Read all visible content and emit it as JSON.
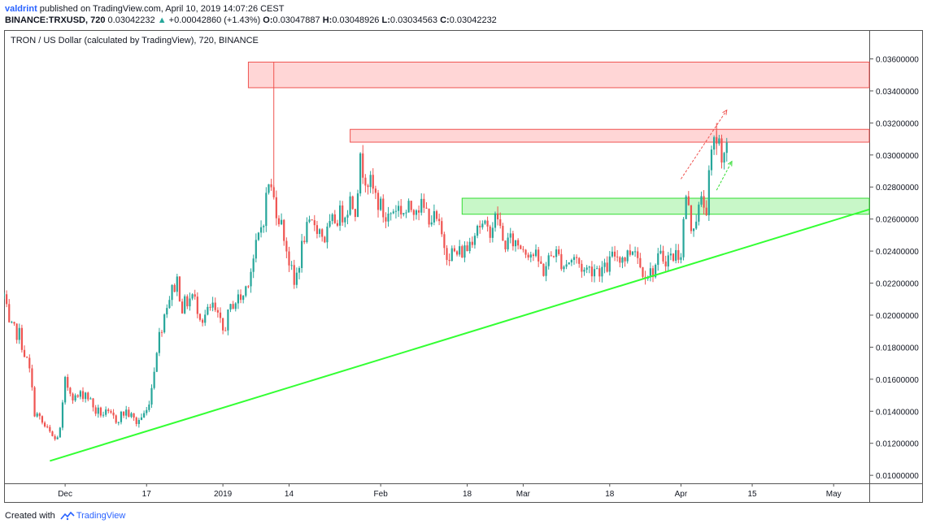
{
  "header": {
    "author": "valdrint",
    "published_text": "published on TradingView.com, April 10, 2019 14:07:26 CEST",
    "symbol": "BINANCE:TRXUSD, 720",
    "last": "0.03042232",
    "change_arrow": "▲",
    "change": "+0.00042860 (+1.43%)",
    "o_label": "O:",
    "o_value": "0.03047887",
    "h_label": "H:",
    "h_value": "0.03048926",
    "l_label": "L:",
    "l_value": "0.03034563",
    "c_label": "C:",
    "c_value": "0.03042232"
  },
  "footer": {
    "created_with": "Created with",
    "brand": "TradingView"
  },
  "colors": {
    "up": "#26a69a",
    "down": "#ef5350",
    "trendline": "#33ff33",
    "resistance_fill": "#ffd6d6",
    "resistance_stroke": "#ef5350",
    "support_fill": "#c8f7c8",
    "support_stroke": "#33dd33",
    "axis_text": "#131722",
    "border": "#555555"
  },
  "chart_data": {
    "type": "candlestick",
    "title": "TRON / US Dollar (calculated by TradingView), 720, BINANCE",
    "ylim": [
      0.0095,
      0.0378
    ],
    "y_ticks": [
      0.036,
      0.034,
      0.032,
      0.03,
      0.028,
      0.026,
      0.024,
      0.022,
      0.02,
      0.018,
      0.016,
      0.014,
      0.012,
      0.01
    ],
    "y_tick_labels": [
      "0.03600000",
      "0.03400000",
      "0.03200000",
      "0.03000000",
      "0.02800000",
      "0.02600000",
      "0.02400000",
      "0.02200000",
      "0.02000000",
      "0.01800000",
      "0.01600000",
      "0.01400000",
      "0.01200000",
      "0.01000000"
    ],
    "xlim": [
      "2018-11-19",
      "2019-05-08"
    ],
    "x_ticks": [
      {
        "date": "2018-12-01",
        "label": "Dec"
      },
      {
        "date": "2018-12-17",
        "label": "17"
      },
      {
        "date": "2019-01-01",
        "label": "2019"
      },
      {
        "date": "2019-01-14",
        "label": "14"
      },
      {
        "date": "2019-02-01",
        "label": "Feb"
      },
      {
        "date": "2019-02-18",
        "label": "18"
      },
      {
        "date": "2019-03-01",
        "label": "Mar"
      },
      {
        "date": "2019-03-18",
        "label": "18"
      },
      {
        "date": "2019-04-01",
        "label": "Apr"
      },
      {
        "date": "2019-04-15",
        "label": "15"
      },
      {
        "date": "2019-05-01",
        "label": "May"
      }
    ],
    "price_path": [
      [
        "2018-11-19",
        0.0212
      ],
      [
        "2018-11-20",
        0.0192
      ],
      [
        "2018-11-22",
        0.0188
      ],
      [
        "2018-11-24",
        0.0165
      ],
      [
        "2018-11-25",
        0.014
      ],
      [
        "2018-11-27",
        0.013
      ],
      [
        "2018-11-29",
        0.0122
      ],
      [
        "2018-11-30",
        0.0128
      ],
      [
        "2018-12-01",
        0.0158
      ],
      [
        "2018-12-03",
        0.0148
      ],
      [
        "2018-12-05",
        0.0152
      ],
      [
        "2018-12-07",
        0.014
      ],
      [
        "2018-12-09",
        0.0138
      ],
      [
        "2018-12-11",
        0.0135
      ],
      [
        "2018-12-13",
        0.014
      ],
      [
        "2018-12-15",
        0.0133
      ],
      [
        "2018-12-17",
        0.014
      ],
      [
        "2018-12-18",
        0.0155
      ],
      [
        "2018-12-19",
        0.018
      ],
      [
        "2018-12-21",
        0.0208
      ],
      [
        "2018-12-23",
        0.0222
      ],
      [
        "2018-12-24",
        0.0205
      ],
      [
        "2018-12-26",
        0.0212
      ],
      [
        "2018-12-28",
        0.0198
      ],
      [
        "2018-12-30",
        0.0205
      ],
      [
        "2019-01-01",
        0.019
      ],
      [
        "2019-01-03",
        0.0208
      ],
      [
        "2019-01-05",
        0.0212
      ],
      [
        "2019-01-07",
        0.0235
      ],
      [
        "2019-01-09",
        0.0262
      ],
      [
        "2019-01-10",
        0.0283
      ],
      [
        "2019-01-11",
        0.0272
      ],
      [
        "2019-01-12",
        0.0262
      ],
      [
        "2019-01-13",
        0.025
      ],
      [
        "2019-01-15",
        0.0218
      ],
      [
        "2019-01-17",
        0.025
      ],
      [
        "2019-01-19",
        0.0258
      ],
      [
        "2019-01-21",
        0.0248
      ],
      [
        "2019-01-23",
        0.026
      ],
      [
        "2019-01-25",
        0.0265
      ],
      [
        "2019-01-26",
        0.0272
      ],
      [
        "2019-01-27",
        0.0268
      ],
      [
        "2019-01-28",
        0.0295
      ],
      [
        "2019-01-29",
        0.0288
      ],
      [
        "2019-01-31",
        0.0274
      ],
      [
        "2019-02-02",
        0.026
      ],
      [
        "2019-02-04",
        0.0268
      ],
      [
        "2019-02-06",
        0.0264
      ],
      [
        "2019-02-08",
        0.027
      ],
      [
        "2019-02-10",
        0.0264
      ],
      [
        "2019-02-12",
        0.0258
      ],
      [
        "2019-02-14",
        0.024
      ],
      [
        "2019-02-16",
        0.0238
      ],
      [
        "2019-02-18",
        0.0242
      ],
      [
        "2019-02-20",
        0.0258
      ],
      [
        "2019-02-22",
        0.0252
      ],
      [
        "2019-02-24",
        0.0262
      ],
      [
        "2019-02-25",
        0.0245
      ],
      [
        "2019-02-27",
        0.0246
      ],
      [
        "2019-03-01",
        0.0243
      ],
      [
        "2019-03-03",
        0.0238
      ],
      [
        "2019-03-05",
        0.0228
      ],
      [
        "2019-03-07",
        0.024
      ],
      [
        "2019-03-09",
        0.0232
      ],
      [
        "2019-03-11",
        0.0236
      ],
      [
        "2019-03-13",
        0.0228
      ],
      [
        "2019-03-15",
        0.023
      ],
      [
        "2019-03-17",
        0.0228
      ],
      [
        "2019-03-19",
        0.0238
      ],
      [
        "2019-03-21",
        0.0236
      ],
      [
        "2019-03-23",
        0.0244
      ],
      [
        "2019-03-24",
        0.023
      ],
      [
        "2019-03-26",
        0.0226
      ],
      [
        "2019-03-28",
        0.0236
      ],
      [
        "2019-03-30",
        0.0236
      ],
      [
        "2019-04-01",
        0.024
      ],
      [
        "2019-04-02",
        0.0275
      ],
      [
        "2019-04-03",
        0.0255
      ],
      [
        "2019-04-04",
        0.0262
      ],
      [
        "2019-04-05",
        0.027
      ],
      [
        "2019-04-06",
        0.0268
      ],
      [
        "2019-04-07",
        0.03
      ],
      [
        "2019-04-08",
        0.0312
      ],
      [
        "2019-04-09",
        0.0302
      ],
      [
        "2019-04-10",
        0.0304
      ]
    ],
    "zones": [
      {
        "kind": "resistance",
        "x0": "2019-01-06",
        "x1": "2019-05-08",
        "y0": 0.0342,
        "y1": 0.0358
      },
      {
        "kind": "resistance",
        "x0": "2019-01-26",
        "x1": "2019-05-08",
        "y0": 0.0308,
        "y1": 0.0316
      },
      {
        "kind": "support",
        "x0": "2019-02-17",
        "x1": "2019-05-08",
        "y0": 0.0263,
        "y1": 0.0273
      }
    ],
    "trendline": {
      "x0": "2018-11-28",
      "y0": 0.0109,
      "x1": "2019-05-08",
      "y1": 0.0266
    },
    "arrows": [
      {
        "x0": "2019-04-01",
        "y0": 0.0285,
        "x1": "2019-04-10",
        "y1": 0.0328,
        "color": "#ef5350"
      },
      {
        "x0": "2019-04-08",
        "y0": 0.0278,
        "x1": "2019-04-11",
        "y1": 0.0296,
        "color": "#33dd33"
      }
    ]
  }
}
